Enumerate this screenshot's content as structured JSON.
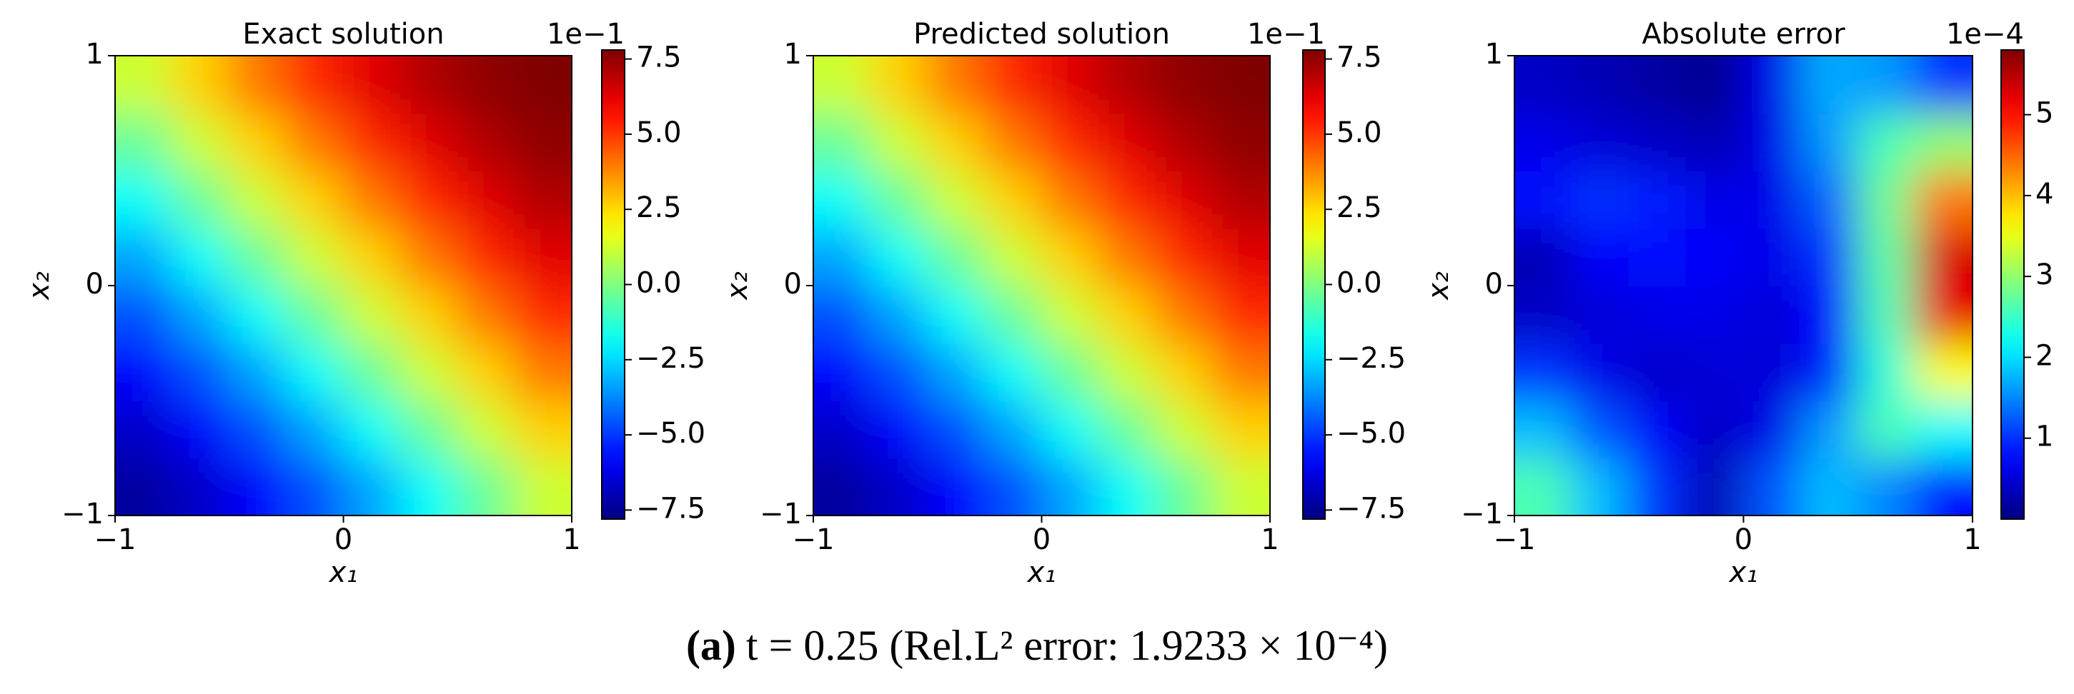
{
  "caption": {
    "label": "(a)",
    "text": "t = 0.25 (Rel.L² error: 1.9233 × 10⁻⁴)"
  },
  "chart_data": [
    {
      "type": "heatmap",
      "title": "Exact solution",
      "xlabel": "x₁",
      "ylabel": "x₂",
      "colormap": "jet",
      "xlim": [
        -1,
        1
      ],
      "ylim": [
        -1,
        1
      ],
      "xticks": [
        {
          "value": -1,
          "label": "−1"
        },
        0,
        1
      ],
      "yticks": [
        {
          "value": -1,
          "label": "−1"
        },
        0,
        1
      ],
      "x": [
        -0.875,
        -0.625,
        -0.375,
        -0.125,
        0.125,
        0.375,
        0.625,
        0.875
      ],
      "y": [
        -0.875,
        -0.625,
        -0.375,
        -0.125,
        0.125,
        0.375,
        0.625,
        0.875
      ],
      "z": [
        [
          -7.34,
          -6.68,
          -5.76,
          -4.63,
          -3.32,
          -1.87,
          -0.36,
          1.17
        ],
        [
          -6.68,
          -5.76,
          -4.63,
          -3.32,
          -1.87,
          -0.36,
          1.17,
          2.65
        ],
        [
          -5.76,
          -4.63,
          -3.32,
          -1.87,
          -0.36,
          1.17,
          2.65,
          4.03
        ],
        [
          -4.63,
          -3.32,
          -1.87,
          -0.36,
          1.17,
          2.65,
          4.03,
          5.25
        ],
        [
          -3.32,
          -1.87,
          -0.36,
          1.17,
          2.65,
          4.03,
          5.25,
          6.28
        ],
        [
          -1.87,
          -0.36,
          1.17,
          2.65,
          4.03,
          5.25,
          6.28,
          7.06
        ],
        [
          -0.36,
          1.17,
          2.65,
          4.03,
          5.25,
          6.28,
          7.06,
          7.57
        ],
        [
          1.17,
          2.65,
          4.03,
          5.25,
          6.28,
          7.06,
          7.57,
          7.79
        ]
      ],
      "zlim": [
        -7.8,
        7.8
      ],
      "colorbar_offset": "1e−1",
      "colorbar_ticks": [
        {
          "value": -7.5,
          "label": "−7.5"
        },
        {
          "value": -5.0,
          "label": "−5.0"
        },
        {
          "value": -2.5,
          "label": "−2.5"
        },
        {
          "value": 0,
          "label": "0.0"
        },
        2.5,
        {
          "value": 5,
          "label": "5.0"
        },
        7.5
      ]
    },
    {
      "type": "heatmap",
      "title": "Predicted solution",
      "xlabel": "x₁",
      "ylabel": "x₂",
      "colormap": "jet",
      "xlim": [
        -1,
        1
      ],
      "ylim": [
        -1,
        1
      ],
      "xticks": [
        {
          "value": -1,
          "label": "−1"
        },
        0,
        1
      ],
      "yticks": [
        {
          "value": -1,
          "label": "−1"
        },
        0,
        1
      ],
      "x": [
        -0.875,
        -0.625,
        -0.375,
        -0.125,
        0.125,
        0.375,
        0.625,
        0.875
      ],
      "y": [
        -0.875,
        -0.625,
        -0.375,
        -0.125,
        0.125,
        0.375,
        0.625,
        0.875
      ],
      "z": [
        [
          -7.34,
          -6.68,
          -5.76,
          -4.63,
          -3.32,
          -1.87,
          -0.36,
          1.17
        ],
        [
          -6.68,
          -5.76,
          -4.63,
          -3.32,
          -1.87,
          -0.36,
          1.17,
          2.65
        ],
        [
          -5.76,
          -4.63,
          -3.32,
          -1.87,
          -0.36,
          1.17,
          2.65,
          4.03
        ],
        [
          -4.63,
          -3.32,
          -1.87,
          -0.36,
          1.17,
          2.65,
          4.03,
          5.25
        ],
        [
          -3.32,
          -1.87,
          -0.36,
          1.17,
          2.65,
          4.03,
          5.25,
          6.28
        ],
        [
          -1.87,
          -0.36,
          1.17,
          2.65,
          4.03,
          5.25,
          6.28,
          7.06
        ],
        [
          -0.36,
          1.17,
          2.65,
          4.03,
          5.25,
          6.28,
          7.06,
          7.57
        ],
        [
          1.17,
          2.65,
          4.03,
          5.25,
          6.28,
          7.06,
          7.57,
          7.79
        ]
      ],
      "zlim": [
        -7.8,
        7.8
      ],
      "colorbar_offset": "1e−1",
      "colorbar_ticks": [
        {
          "value": -7.5,
          "label": "−7.5"
        },
        {
          "value": -5.0,
          "label": "−5.0"
        },
        {
          "value": -2.5,
          "label": "−2.5"
        },
        {
          "value": 0,
          "label": "0.0"
        },
        2.5,
        {
          "value": 5,
          "label": "5.0"
        },
        7.5
      ]
    },
    {
      "type": "heatmap",
      "title": "Absolute error",
      "xlabel": "x₁",
      "ylabel": "x₂",
      "colormap": "jet",
      "xlim": [
        -1,
        1
      ],
      "ylim": [
        -1,
        1
      ],
      "xticks": [
        {
          "value": -1,
          "label": "−1"
        },
        0,
        1
      ],
      "yticks": [
        {
          "value": -1,
          "label": "−1"
        },
        0,
        1
      ],
      "x": [
        -0.875,
        -0.625,
        -0.375,
        -0.125,
        0.125,
        0.375,
        0.625,
        0.875
      ],
      "y": [
        -0.875,
        -0.625,
        -0.375,
        -0.125,
        0.125,
        0.375,
        0.625,
        0.875
      ],
      "z": [
        [
          2.6,
          1.8,
          1.0,
          0.3,
          1.2,
          1.8,
          1.5,
          0.8
        ],
        [
          1.8,
          1.2,
          0.7,
          0.4,
          0.6,
          1.6,
          2.6,
          2.2
        ],
        [
          1.0,
          0.6,
          0.4,
          0.5,
          0.5,
          0.9,
          2.4,
          3.6
        ],
        [
          0.4,
          0.5,
          0.6,
          0.6,
          0.5,
          0.8,
          2.6,
          5.2
        ],
        [
          0.3,
          0.7,
          0.8,
          0.7,
          0.6,
          1.0,
          2.7,
          5.3
        ],
        [
          0.8,
          1.0,
          0.9,
          0.6,
          0.6,
          1.3,
          2.8,
          4.4
        ],
        [
          0.6,
          0.5,
          0.4,
          0.3,
          0.6,
          1.6,
          2.6,
          3.0
        ],
        [
          0.4,
          0.3,
          0.2,
          0.1,
          0.6,
          1.7,
          1.6,
          1.0
        ]
      ],
      "zlim": [
        0,
        5.8
      ],
      "colorbar_offset": "1e−4",
      "colorbar_ticks": [
        1,
        2,
        3,
        4,
        5
      ]
    }
  ]
}
